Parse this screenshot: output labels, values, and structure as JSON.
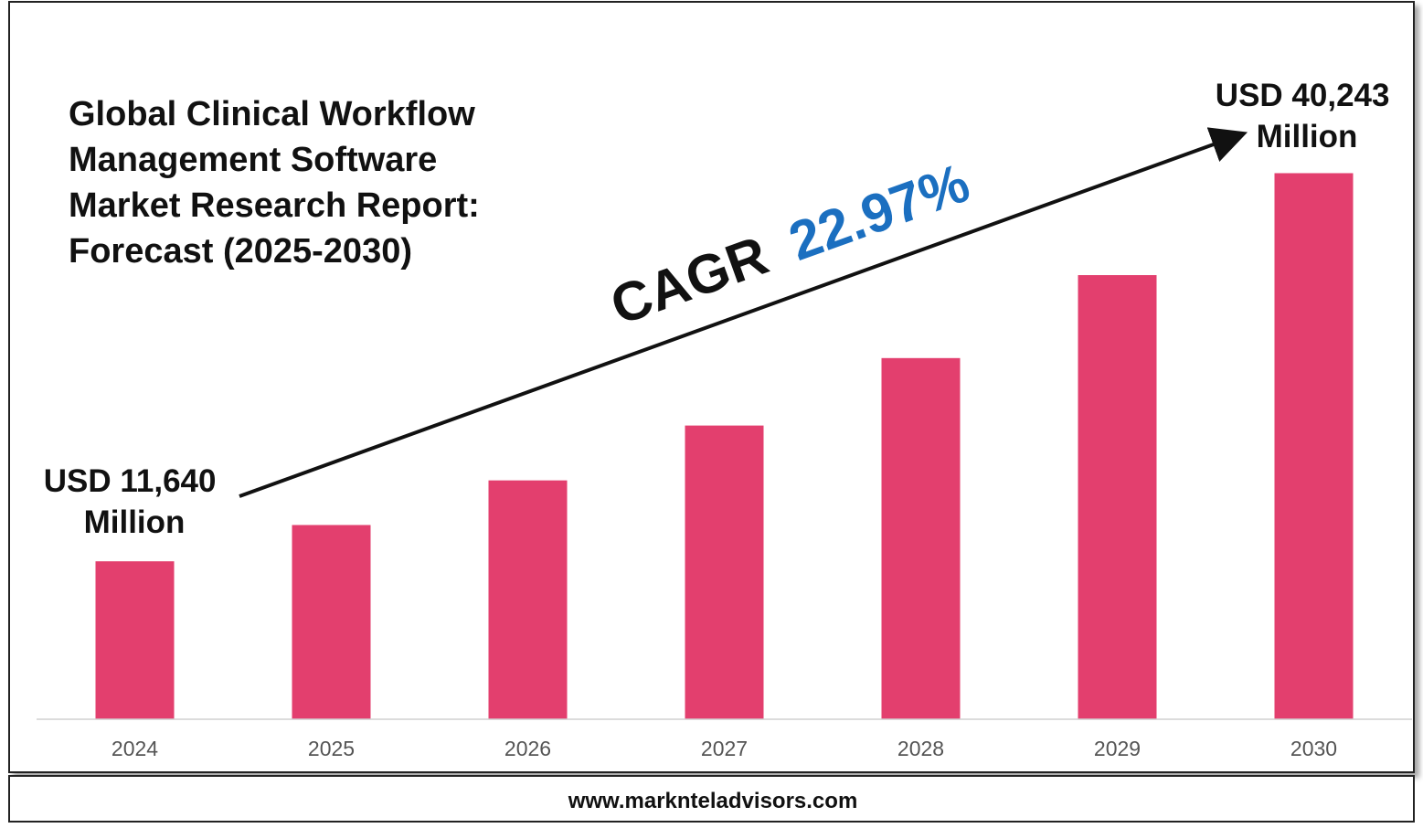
{
  "title_lines": [
    "Global Clinical Workflow",
    "Management Software",
    "Market Research Report:",
    "Forecast (2025-2030)"
  ],
  "cagr": {
    "label": "CAGR",
    "value": "22.97%"
  },
  "start_annotation": [
    "USD 11,640",
    "Million"
  ],
  "end_annotation": [
    "USD 40,243",
    "Million"
  ],
  "footer": {
    "url": "www.marknteladvisors.com"
  },
  "colors": {
    "bar": "#E33F6E",
    "cagr_value": "#1B6FC0",
    "text": "#111111",
    "axis_text": "#555555",
    "frame": "#222222"
  },
  "chart_data": {
    "type": "bar",
    "categories": [
      "2024",
      "2025",
      "2026",
      "2027",
      "2028",
      "2029",
      "2030"
    ],
    "series": [
      {
        "values": [
          11640,
          14314,
          17602,
          21645,
          26616,
          32730,
          40243
        ]
      }
    ],
    "ylim": [
      0,
      46000
    ],
    "grid": false,
    "legend": "none"
  }
}
